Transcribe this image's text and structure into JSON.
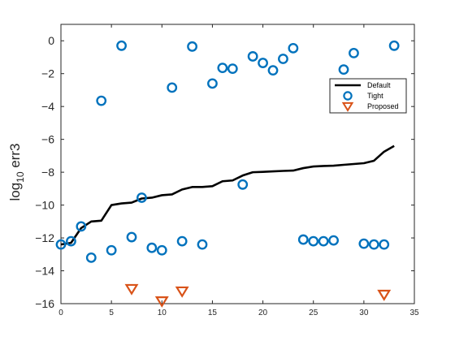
{
  "chart_data": {
    "type": "line+scatter",
    "ylabel": "log",
    "ylabel_sub": "10",
    "ylabel_tail": " err3",
    "xlim": [
      0,
      35
    ],
    "ylim": [
      -16,
      1
    ],
    "xticks": [
      0,
      5,
      10,
      15,
      20,
      25,
      30,
      35
    ],
    "yticks": [
      -16,
      -14,
      -12,
      -10,
      -8,
      -6,
      -4,
      -2,
      0
    ],
    "grid": false,
    "legend_position": "right",
    "colors": {
      "Default": "#000000",
      "Tight": "#0072BD",
      "Proposed": "#D95319"
    },
    "series": [
      {
        "name": "Default",
        "type": "line",
        "x": [
          0,
          1,
          2,
          3,
          4,
          5,
          6,
          7,
          8,
          9,
          10,
          11,
          12,
          13,
          14,
          15,
          16,
          17,
          18,
          19,
          20,
          21,
          22,
          23,
          24,
          25,
          26,
          27,
          28,
          29,
          30,
          31,
          32,
          33
        ],
        "y": [
          -12.4,
          -12.3,
          -11.4,
          -11.0,
          -10.95,
          -10.0,
          -9.9,
          -9.85,
          -9.6,
          -9.55,
          -9.4,
          -9.35,
          -9.05,
          -8.9,
          -8.9,
          -8.85,
          -8.55,
          -8.5,
          -8.2,
          -8.0,
          -7.98,
          -7.95,
          -7.92,
          -7.9,
          -7.75,
          -7.65,
          -7.62,
          -7.6,
          -7.55,
          -7.5,
          -7.45,
          -7.3,
          -6.75,
          -6.4
        ]
      },
      {
        "name": "Tight",
        "type": "scatter",
        "marker": "circle",
        "x": [
          0,
          1,
          2,
          3,
          4,
          5,
          6,
          7,
          8,
          9,
          10,
          11,
          12,
          13,
          14,
          15,
          16,
          17,
          18,
          19,
          20,
          21,
          22,
          23,
          24,
          25,
          26,
          27,
          28,
          29,
          30,
          31,
          32,
          33
        ],
        "y": [
          -12.4,
          -12.2,
          -11.3,
          -13.2,
          -3.65,
          -12.75,
          -0.3,
          -11.95,
          -9.55,
          -12.6,
          -12.75,
          -2.85,
          -12.2,
          -0.35,
          -12.4,
          -2.6,
          -1.65,
          -1.7,
          -8.75,
          -0.95,
          -1.35,
          -1.8,
          -1.1,
          -0.45,
          -12.1,
          -12.2,
          -12.2,
          -12.15,
          -1.75,
          -0.75,
          -12.35,
          -12.4,
          -12.4,
          -0.3
        ]
      },
      {
        "name": "Proposed",
        "type": "scatter",
        "marker": "triangle-down",
        "x": [
          7,
          10,
          12,
          32
        ],
        "y": [
          -15.1,
          -15.85,
          -15.25,
          -15.45
        ]
      }
    ]
  }
}
